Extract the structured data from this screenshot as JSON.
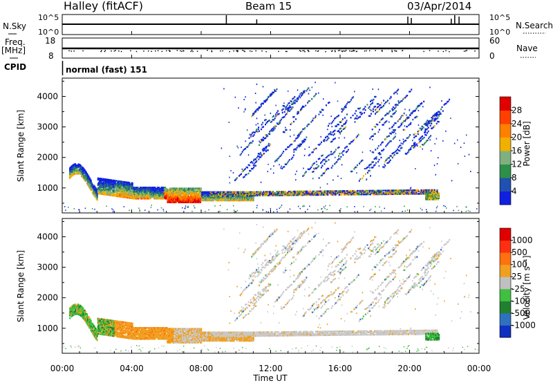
{
  "header": {
    "site": "Halley (fitACF)",
    "beam": "Beam 15",
    "date": "03/Apr/2014"
  },
  "strips": {
    "nsky_label": "N.Sky",
    "nsky_ticks": [
      "10^5",
      "10^0"
    ],
    "nsearch_label": "N.Search",
    "nsearch_ticks": [
      "10^5",
      "10^0"
    ],
    "freq_label": "Freq.",
    "freq_unit": "[MHz]",
    "freq_ticks": [
      "18",
      "8"
    ],
    "nave_label": "Nave",
    "nave_ticks": [
      "60",
      "0"
    ],
    "cpid_label": "CPID",
    "cpid_value": "normal (fast) 151"
  },
  "chart_data": [
    {
      "type": "heatmap",
      "name": "power",
      "ylabel": "Slant Range [km]",
      "ylim": [
        180,
        4600
      ],
      "yticks": [
        1000,
        2000,
        3000,
        4000
      ],
      "xlim": [
        0,
        24
      ],
      "colorbar_label": "Power [dB]",
      "colorbar_ticks": [
        "28",
        "24",
        "20",
        "16",
        "12",
        "8",
        "4"
      ],
      "colors": [
        "#1020e0",
        "#2050b0",
        "#2e8f4a",
        "#80b080",
        "#f0b000",
        "#ff8000",
        "#ff4000",
        "#e00000"
      ]
    },
    {
      "type": "heatmap",
      "name": "velocity",
      "ylabel": "Slant Range [km]",
      "ylim": [
        180,
        4600
      ],
      "yticks": [
        1000,
        2000,
        3000,
        4000
      ],
      "xlim": [
        0,
        24
      ],
      "colorbar_label": "Velocity [m s⁻¹]",
      "colorbar_ticks": [
        "1000",
        "500",
        "100",
        "25",
        "-25",
        "-100",
        "-500",
        "-1000"
      ],
      "colors": [
        "#1030c0",
        "#3070c0",
        "#208030",
        "#40c040",
        "#c0c0c0",
        "#f0a020",
        "#ff7010",
        "#ff3010",
        "#e00000"
      ]
    }
  ],
  "xaxis": {
    "label": "Time UT",
    "ticks": [
      "00:00",
      "04:00",
      "08:00",
      "12:00",
      "16:00",
      "20:00",
      "00:00"
    ]
  }
}
